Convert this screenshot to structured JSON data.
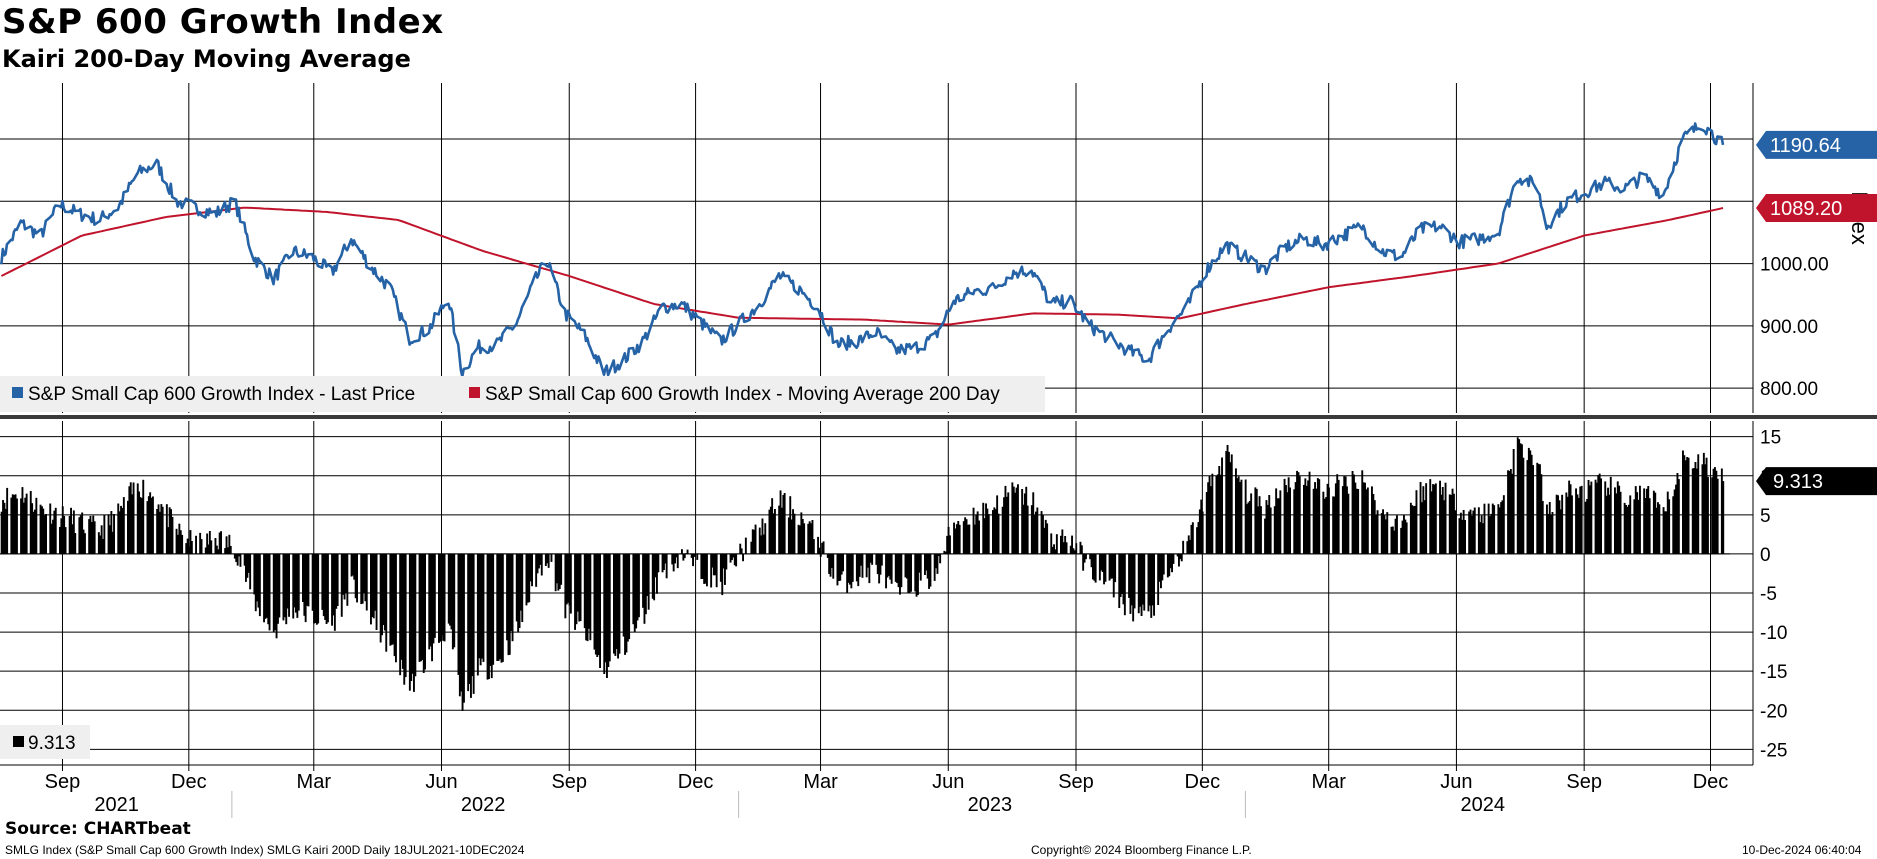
{
  "header": {
    "title": "S&P 600 Growth Index",
    "subtitle": "Kairi 200-Day Moving Average"
  },
  "footer": {
    "source": "Source: CHARTbeat",
    "description": "SMLG Index (S&P Small Cap 600 Growth Index) SMLG Kairi 200D  Daily 18JUL2021-10DEC2024",
    "copyright": "Copyright© 2024 Bloomberg Finance L.P.",
    "timestamp": "10-Dec-2024 06:40:04"
  },
  "colors": {
    "price": "#2563a6",
    "moving_average": "#c0142c",
    "kairi": "#000000",
    "grid": "#000000"
  },
  "chart_data": [
    {
      "type": "line",
      "panel": "upper",
      "ylabel": "Index",
      "ylim": [
        760,
        1290
      ],
      "yticks": [
        800,
        900,
        1000,
        1100,
        1200
      ],
      "ytick_labels": [
        "800.00",
        "900.00",
        "1000.00",
        "",
        ""
      ],
      "legend_position": "bottom-left",
      "x_start": "2021-07-18",
      "x_end": "2024-12-10",
      "series": [
        {
          "name": "S&P Small Cap 600 Growth Index - Last Price",
          "last_value_label": "1190.64",
          "points": [
            [
              "2021-07-19",
              1010
            ],
            [
              "2021-08-02",
              1065
            ],
            [
              "2021-08-16",
              1045
            ],
            [
              "2021-08-30",
              1095
            ],
            [
              "2021-09-13",
              1080
            ],
            [
              "2021-09-27",
              1070
            ],
            [
              "2021-10-11",
              1090
            ],
            [
              "2021-10-25",
              1145
            ],
            [
              "2021-11-08",
              1160
            ],
            [
              "2021-11-22",
              1100
            ],
            [
              "2021-12-06",
              1090
            ],
            [
              "2021-12-20",
              1080
            ],
            [
              "2022-01-03",
              1100
            ],
            [
              "2022-01-17",
              1010
            ],
            [
              "2022-01-31",
              975
            ],
            [
              "2022-02-14",
              1020
            ],
            [
              "2022-02-28",
              1010
            ],
            [
              "2022-03-14",
              985
            ],
            [
              "2022-03-28",
              1040
            ],
            [
              "2022-04-11",
              995
            ],
            [
              "2022-04-25",
              960
            ],
            [
              "2022-05-09",
              880
            ],
            [
              "2022-05-23",
              895
            ],
            [
              "2022-06-06",
              945
            ],
            [
              "2022-06-16",
              825
            ],
            [
              "2022-06-27",
              865
            ],
            [
              "2022-07-11",
              870
            ],
            [
              "2022-07-25",
              905
            ],
            [
              "2022-08-08",
              975
            ],
            [
              "2022-08-16",
              1005
            ],
            [
              "2022-08-29",
              920
            ],
            [
              "2022-09-12",
              885
            ],
            [
              "2022-09-26",
              825
            ],
            [
              "2022-10-10",
              845
            ],
            [
              "2022-10-24",
              875
            ],
            [
              "2022-11-07",
              930
            ],
            [
              "2022-11-21",
              935
            ],
            [
              "2022-12-05",
              905
            ],
            [
              "2022-12-19",
              875
            ],
            [
              "2023-01-02",
              905
            ],
            [
              "2023-01-16",
              935
            ],
            [
              "2023-01-30",
              980
            ],
            [
              "2023-02-13",
              960
            ],
            [
              "2023-02-27",
              930
            ],
            [
              "2023-03-13",
              870
            ],
            [
              "2023-03-27",
              875
            ],
            [
              "2023-04-10",
              890
            ],
            [
              "2023-04-24",
              860
            ],
            [
              "2023-05-08",
              865
            ],
            [
              "2023-05-22",
              880
            ],
            [
              "2023-06-05",
              940
            ],
            [
              "2023-06-19",
              955
            ],
            [
              "2023-07-03",
              960
            ],
            [
              "2023-07-17",
              985
            ],
            [
              "2023-07-31",
              990
            ],
            [
              "2023-08-14",
              935
            ],
            [
              "2023-08-28",
              940
            ],
            [
              "2023-09-11",
              900
            ],
            [
              "2023-09-25",
              880
            ],
            [
              "2023-10-09",
              860
            ],
            [
              "2023-10-23",
              845
            ],
            [
              "2023-11-06",
              895
            ],
            [
              "2023-11-20",
              930
            ],
            [
              "2023-12-04",
              990
            ],
            [
              "2023-12-18",
              1030
            ],
            [
              "2024-01-01",
              1010
            ],
            [
              "2024-01-15",
              990
            ],
            [
              "2024-01-29",
              1025
            ],
            [
              "2024-02-12",
              1040
            ],
            [
              "2024-02-26",
              1030
            ],
            [
              "2024-03-11",
              1045
            ],
            [
              "2024-03-25",
              1060
            ],
            [
              "2024-04-08",
              1020
            ],
            [
              "2024-04-22",
              1010
            ],
            [
              "2024-05-06",
              1055
            ],
            [
              "2024-05-20",
              1060
            ],
            [
              "2024-06-03",
              1035
            ],
            [
              "2024-06-17",
              1040
            ],
            [
              "2024-07-01",
              1050
            ],
            [
              "2024-07-15",
              1140
            ],
            [
              "2024-07-29",
              1125
            ],
            [
              "2024-08-05",
              1060
            ],
            [
              "2024-08-19",
              1100
            ],
            [
              "2024-09-02",
              1115
            ],
            [
              "2024-09-16",
              1130
            ],
            [
              "2024-09-30",
              1120
            ],
            [
              "2024-10-14",
              1140
            ],
            [
              "2024-10-28",
              1110
            ],
            [
              "2024-11-11",
              1200
            ],
            [
              "2024-11-25",
              1225
            ],
            [
              "2024-12-10",
              1190.64
            ]
          ]
        },
        {
          "name": "S&P Small Cap 600 Growth Index - Moving Average 200 Day",
          "last_value_label": "1089.20",
          "points": [
            [
              "2021-07-19",
              980
            ],
            [
              "2021-09-15",
              1045
            ],
            [
              "2021-11-15",
              1075
            ],
            [
              "2022-01-10",
              1090
            ],
            [
              "2022-03-10",
              1083
            ],
            [
              "2022-05-01",
              1070
            ],
            [
              "2022-07-01",
              1020
            ],
            [
              "2022-09-01",
              980
            ],
            [
              "2022-11-01",
              935
            ],
            [
              "2023-01-01",
              913
            ],
            [
              "2023-04-01",
              910
            ],
            [
              "2023-06-01",
              902
            ],
            [
              "2023-08-01",
              920
            ],
            [
              "2023-10-01",
              918
            ],
            [
              "2023-11-15",
              912
            ],
            [
              "2024-01-01",
              935
            ],
            [
              "2024-03-01",
              962
            ],
            [
              "2024-05-01",
              980
            ],
            [
              "2024-07-01",
              1000
            ],
            [
              "2024-09-01",
              1045
            ],
            [
              "2024-11-01",
              1070
            ],
            [
              "2024-12-10",
              1089.2
            ]
          ]
        }
      ]
    },
    {
      "type": "bar",
      "panel": "lower",
      "name": "SMLG Kairi 200D",
      "ylim": [
        -27,
        17
      ],
      "yticks": [
        15,
        10,
        5,
        0,
        -5,
        -10,
        -15,
        -20,
        -25
      ],
      "legend_value": "9.313",
      "last_value_label": "9.313",
      "points": [
        [
          "2021-07-19",
          7
        ],
        [
          "2021-08-02",
          8
        ],
        [
          "2021-08-16",
          6
        ],
        [
          "2021-08-30",
          5
        ],
        [
          "2021-09-13",
          4
        ],
        [
          "2021-09-27",
          3
        ],
        [
          "2021-10-11",
          5
        ],
        [
          "2021-10-25",
          9
        ],
        [
          "2021-11-08",
          7
        ],
        [
          "2021-11-22",
          3
        ],
        [
          "2021-12-06",
          1
        ],
        [
          "2021-12-20",
          2
        ],
        [
          "2022-01-03",
          1
        ],
        [
          "2022-01-17",
          -6
        ],
        [
          "2022-01-31",
          -10
        ],
        [
          "2022-02-14",
          -7
        ],
        [
          "2022-02-28",
          -8
        ],
        [
          "2022-03-14",
          -9
        ],
        [
          "2022-03-28",
          -4
        ],
        [
          "2022-04-11",
          -8
        ],
        [
          "2022-04-25",
          -12
        ],
        [
          "2022-05-09",
          -17
        ],
        [
          "2022-05-23",
          -13
        ],
        [
          "2022-06-06",
          -9
        ],
        [
          "2022-06-16",
          -20
        ],
        [
          "2022-06-27",
          -15
        ],
        [
          "2022-07-11",
          -14
        ],
        [
          "2022-07-25",
          -10
        ],
        [
          "2022-08-08",
          -3
        ],
        [
          "2022-08-16",
          0
        ],
        [
          "2022-08-29",
          -7
        ],
        [
          "2022-09-12",
          -10
        ],
        [
          "2022-09-26",
          -15
        ],
        [
          "2022-10-10",
          -12
        ],
        [
          "2022-10-24",
          -8
        ],
        [
          "2022-11-07",
          -2
        ],
        [
          "2022-11-21",
          0
        ],
        [
          "2022-12-05",
          -2
        ],
        [
          "2022-12-19",
          -4
        ],
        [
          "2023-01-02",
          0
        ],
        [
          "2023-01-16",
          3
        ],
        [
          "2023-01-30",
          7
        ],
        [
          "2023-02-13",
          5
        ],
        [
          "2023-02-27",
          2
        ],
        [
          "2023-03-13",
          -4
        ],
        [
          "2023-03-27",
          -3
        ],
        [
          "2023-04-10",
          -2
        ],
        [
          "2023-04-24",
          -5
        ],
        [
          "2023-05-08",
          -4
        ],
        [
          "2023-05-22",
          -3
        ],
        [
          "2023-06-05",
          4
        ],
        [
          "2023-06-19",
          5
        ],
        [
          "2023-07-03",
          6
        ],
        [
          "2023-07-17",
          8
        ],
        [
          "2023-07-31",
          7
        ],
        [
          "2023-08-14",
          2
        ],
        [
          "2023-08-28",
          2
        ],
        [
          "2023-09-11",
          -2
        ],
        [
          "2023-09-25",
          -4
        ],
        [
          "2023-10-09",
          -7
        ],
        [
          "2023-10-23",
          -8
        ],
        [
          "2023-11-06",
          -3
        ],
        [
          "2023-11-20",
          1
        ],
        [
          "2023-12-04",
          8
        ],
        [
          "2023-12-18",
          13
        ],
        [
          "2024-01-01",
          8
        ],
        [
          "2024-01-15",
          6
        ],
        [
          "2024-01-29",
          9
        ],
        [
          "2024-02-12",
          10
        ],
        [
          "2024-02-26",
          8
        ],
        [
          "2024-03-11",
          9
        ],
        [
          "2024-03-25",
          10
        ],
        [
          "2024-04-08",
          5
        ],
        [
          "2024-04-22",
          4
        ],
        [
          "2024-05-06",
          8
        ],
        [
          "2024-05-20",
          9
        ],
        [
          "2024-06-03",
          6
        ],
        [
          "2024-06-17",
          5
        ],
        [
          "2024-07-01",
          6
        ],
        [
          "2024-07-15",
          14
        ],
        [
          "2024-07-29",
          12
        ],
        [
          "2024-08-05",
          5
        ],
        [
          "2024-08-19",
          8
        ],
        [
          "2024-09-02",
          8
        ],
        [
          "2024-09-16",
          9
        ],
        [
          "2024-09-30",
          7
        ],
        [
          "2024-10-14",
          8
        ],
        [
          "2024-10-28",
          5
        ],
        [
          "2024-11-11",
          12
        ],
        [
          "2024-11-25",
          12
        ],
        [
          "2024-12-10",
          9.313
        ]
      ]
    }
  ],
  "x_axis": {
    "months": [
      {
        "date": "2021-09-01",
        "label": "Sep"
      },
      {
        "date": "2021-12-01",
        "label": "Dec"
      },
      {
        "date": "2022-03-01",
        "label": "Mar"
      },
      {
        "date": "2022-06-01",
        "label": "Jun"
      },
      {
        "date": "2022-09-01",
        "label": "Sep"
      },
      {
        "date": "2022-12-01",
        "label": "Dec"
      },
      {
        "date": "2023-03-01",
        "label": "Mar"
      },
      {
        "date": "2023-06-01",
        "label": "Jun"
      },
      {
        "date": "2023-09-01",
        "label": "Sep"
      },
      {
        "date": "2023-12-01",
        "label": "Dec"
      },
      {
        "date": "2024-03-01",
        "label": "Mar"
      },
      {
        "date": "2024-06-01",
        "label": "Jun"
      },
      {
        "date": "2024-09-01",
        "label": "Sep"
      },
      {
        "date": "2024-12-01",
        "label": "Dec"
      }
    ],
    "years": [
      {
        "label": "2021",
        "center": "2021-10-10"
      },
      {
        "label": "2022",
        "center": "2022-07-01"
      },
      {
        "label": "2023",
        "center": "2023-07-01"
      },
      {
        "label": "2024",
        "center": "2024-06-20"
      }
    ],
    "year_boundaries": [
      "2022-01-01",
      "2023-01-01",
      "2024-01-01"
    ]
  }
}
